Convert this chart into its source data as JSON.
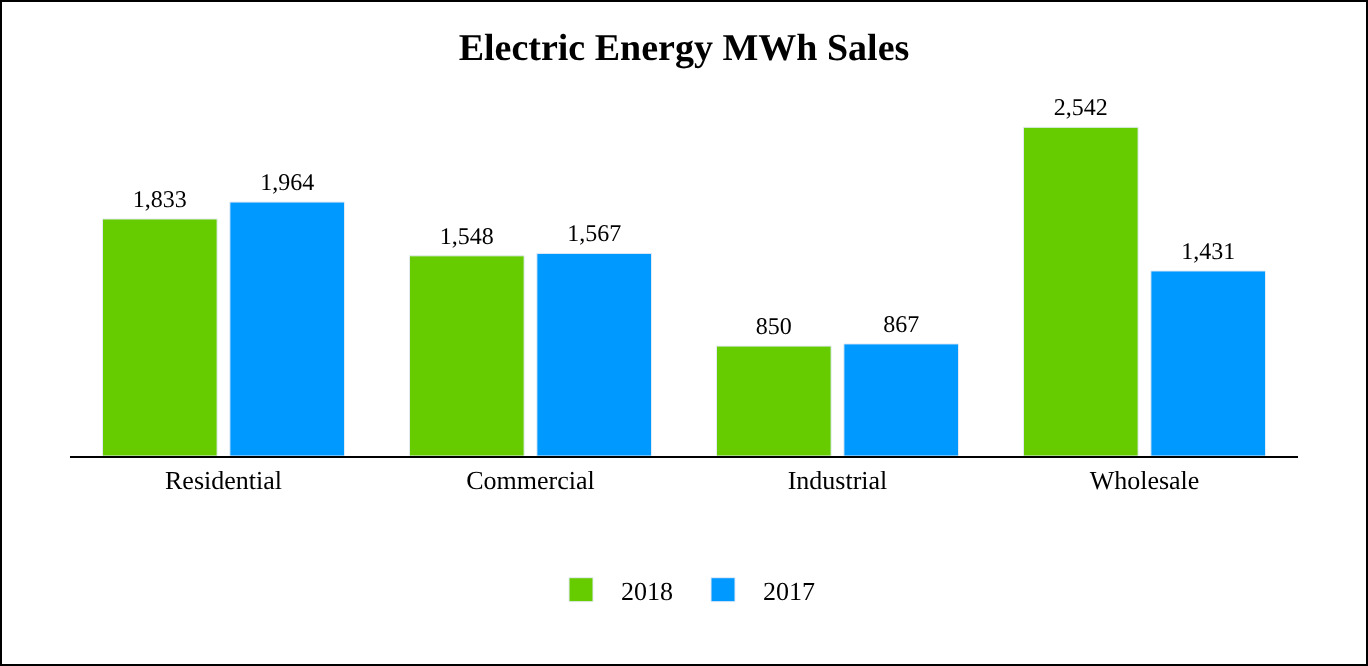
{
  "chart_data": {
    "type": "bar",
    "title": "Electric Energy MWh Sales",
    "categories": [
      "Residential",
      "Commercial",
      "Industrial",
      "Wholesale"
    ],
    "series": [
      {
        "name": "2018",
        "color": "#66cc00",
        "values": [
          1833,
          1548,
          850,
          2542
        ],
        "value_labels": [
          "1,833",
          "1,548",
          "850",
          "2,542"
        ]
      },
      {
        "name": "2017",
        "color": "#0099ff",
        "values": [
          1964,
          1567,
          867,
          1431
        ],
        "value_labels": [
          "1,964",
          "1,567",
          "867",
          "1,431"
        ]
      }
    ],
    "legend": "bottom"
  }
}
